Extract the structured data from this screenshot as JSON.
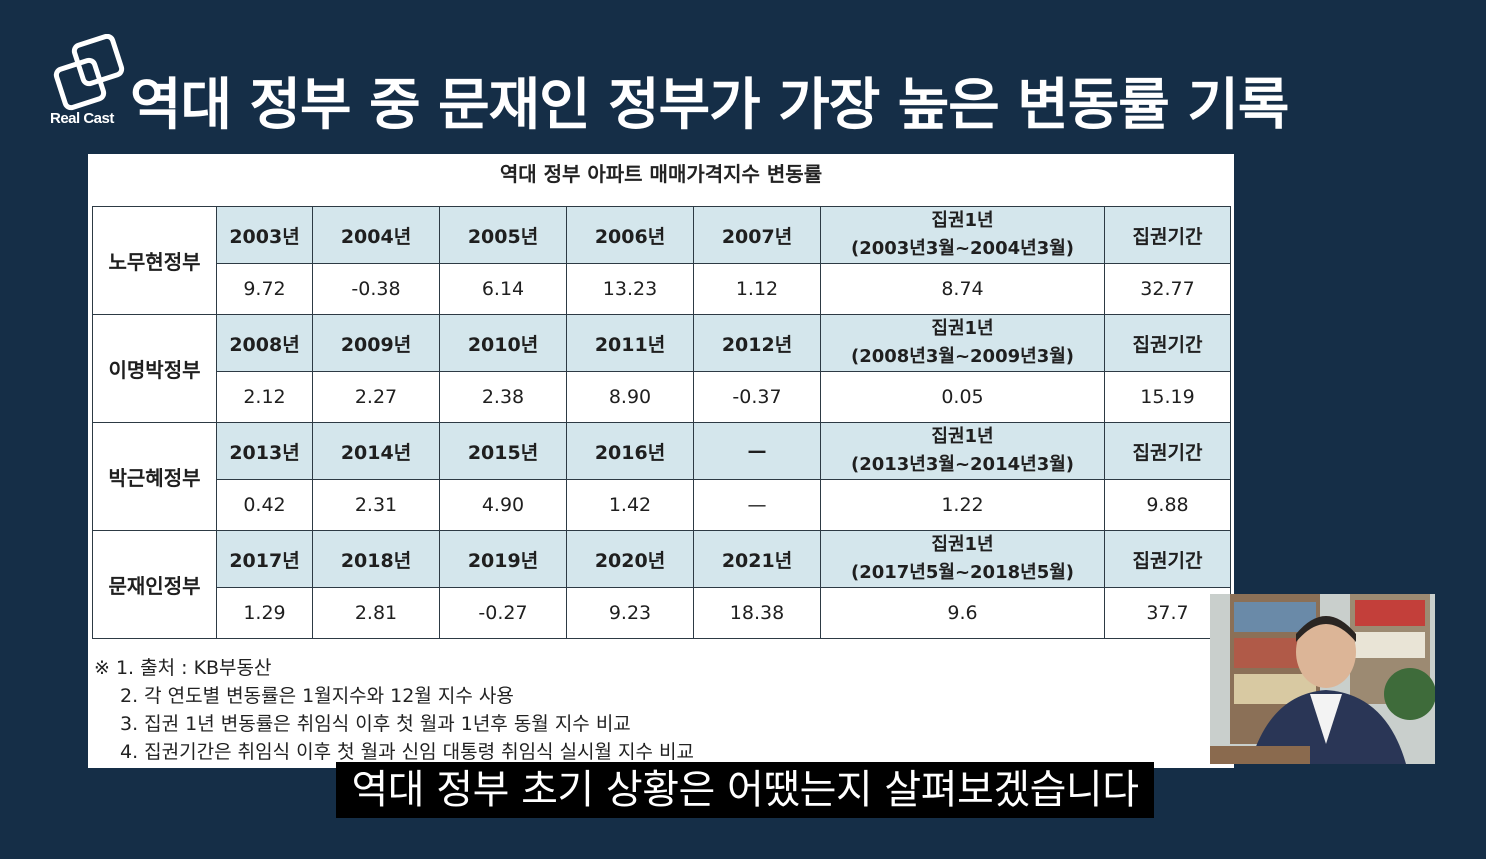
{
  "channel": {
    "logo_text": "Real Cast"
  },
  "headline": "역대 정부 중 문재인 정부가 가장 높은 변동률 기록",
  "table": {
    "title": "역대 정부 아파트 매매가격지수 변동률",
    "groups": [
      {
        "gov": "노무현정부",
        "years": [
          "2003년",
          "2004년",
          "2005년",
          "2006년",
          "2007년"
        ],
        "term1_label": "집권1년",
        "term1_range": "(2003년3월~2004년3월)",
        "full_label": "집권기간",
        "values": [
          "9.72",
          "-0.38",
          "6.14",
          "13.23",
          "1.12"
        ],
        "term1_value": "8.74",
        "full_value": "32.77"
      },
      {
        "gov": "이명박정부",
        "years": [
          "2008년",
          "2009년",
          "2010년",
          "2011년",
          "2012년"
        ],
        "term1_label": "집권1년",
        "term1_range": "(2008년3월~2009년3월)",
        "full_label": "집권기간",
        "values": [
          "2.12",
          "2.27",
          "2.38",
          "8.90",
          "-0.37"
        ],
        "term1_value": "0.05",
        "full_value": "15.19"
      },
      {
        "gov": "박근혜정부",
        "years": [
          "2013년",
          "2014년",
          "2015년",
          "2016년",
          "—"
        ],
        "term1_label": "집권1년",
        "term1_range": "(2013년3월~2014년3월)",
        "full_label": "집권기간",
        "values": [
          "0.42",
          "2.31",
          "4.90",
          "1.42",
          "—"
        ],
        "term1_value": "1.22",
        "full_value": "9.88"
      },
      {
        "gov": "문재인정부",
        "years": [
          "2017년",
          "2018년",
          "2019년",
          "2020년",
          "2021년"
        ],
        "term1_label": "집권1년",
        "term1_range": "(2017년5월~2018년5월)",
        "full_label": "집권기간",
        "values": [
          "1.29",
          "2.81",
          "-0.27",
          "9.23",
          "18.38"
        ],
        "term1_value": "9.6",
        "full_value": "37.7"
      }
    ]
  },
  "notes": [
    "※ 1. 출처 : KB부동산",
    "2. 각 연도별 변동률은 1월지수와 12월 지수 사용",
    "3. 집권 1년 변동률은 취임식 이후 첫 월과 1년후 동월 지수 비교",
    "4. 집권기간은 취임식 이후 첫 월과 신임 대통령 취임식 실시월 지수 비교"
  ],
  "subtitle": "역대 정부 초기 상황은 어땠는지 살펴보겠습니다",
  "colors": {
    "frame": "#152e47",
    "header_fill": "#d4e6ec",
    "subtitle_bg": "#000000"
  }
}
